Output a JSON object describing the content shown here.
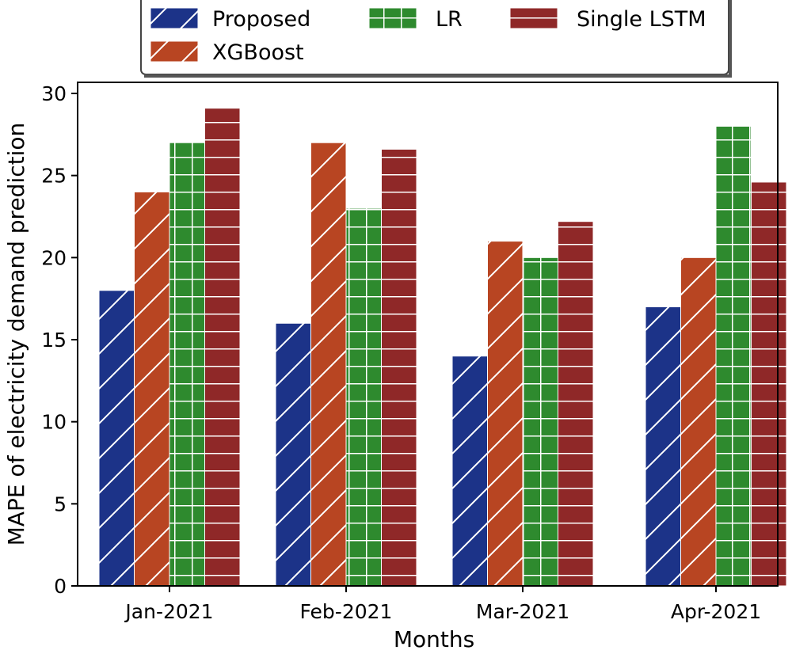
{
  "chart_data": {
    "type": "bar",
    "title": "",
    "xlabel": "Months",
    "ylabel": "MAPE of electricity demand prediction",
    "categories": [
      "Jan-2021",
      "Feb-2021",
      "Mar-2021",
      "Apr-2021"
    ],
    "ylim": [
      0,
      30
    ],
    "yticks": [
      0,
      5,
      10,
      15,
      20,
      25,
      30
    ],
    "grid": false,
    "legend_position": "top",
    "series": [
      {
        "name": "Proposed",
        "values": [
          18,
          16,
          14,
          17
        ],
        "color": "#1c3388",
        "hatch": "diagonal"
      },
      {
        "name": "XGBoost",
        "values": [
          24,
          27,
          21,
          20
        ],
        "color": "#b84522",
        "hatch": "diagonal"
      },
      {
        "name": "LR",
        "values": [
          27,
          23,
          20,
          28
        ],
        "color": "#2e8a2e",
        "hatch": "grid"
      },
      {
        "name": "Single LSTM",
        "values": [
          29.1,
          26.6,
          22.2,
          24.6
        ],
        "color": "#8f2828",
        "hatch": "horizontal"
      }
    ]
  }
}
